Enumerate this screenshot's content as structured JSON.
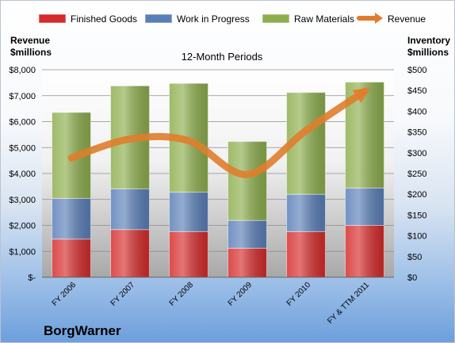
{
  "chart_data": {
    "type": "bar",
    "stacked": true,
    "subtitle": "12-Month Periods",
    "company": "BorgWarner",
    "left_axis_title": [
      "Revenue",
      "$millions"
    ],
    "right_axis_title": [
      "Inventory",
      "$millions"
    ],
    "categories": [
      "FY 2006",
      "FY 2007",
      "FY 2008",
      "FY 2009",
      "FY 2010",
      "FY & TTM 2011"
    ],
    "left_ylim": [
      0,
      8000
    ],
    "right_ylim": [
      0,
      500
    ],
    "left_ticks": [
      "$-",
      "$1,000",
      "$2,000",
      "$3,000",
      "$4,000",
      "$5,000",
      "$6,000",
      "$7,000",
      "$8,000"
    ],
    "right_ticks": [
      "$0",
      "$50",
      "$100",
      "$150",
      "$200",
      "$250",
      "$300",
      "$350",
      "$400",
      "$450",
      "$500"
    ],
    "series": [
      {
        "name": "Finished Goods",
        "axis": "right",
        "color": "#d62b2b",
        "values": [
          92,
          115,
          110,
          70,
          110,
          125
        ]
      },
      {
        "name": "Work in Progress",
        "axis": "right",
        "color": "#5a7fb8",
        "values": [
          98,
          98,
          95,
          67,
          90,
          90
        ]
      },
      {
        "name": "Raw Materials",
        "axis": "right",
        "color": "#8dae4d",
        "values": [
          207,
          248,
          262,
          190,
          245,
          255
        ]
      },
      {
        "name": "Revenue",
        "axis": "left",
        "type": "line",
        "color": "#e07d2c",
        "values": [
          4600,
          5330,
          5260,
          3960,
          5650,
          7170
        ]
      }
    ],
    "legend_position": "top",
    "grid": true
  }
}
